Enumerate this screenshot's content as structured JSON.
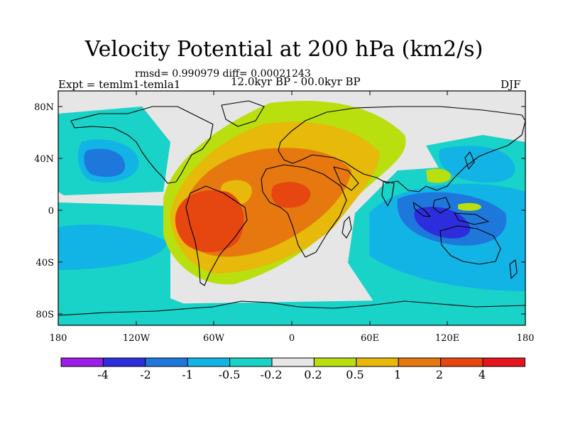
{
  "title": "Velocity Potential at 200 hPa (km2/s)",
  "stats": "rmsd= 0.990979 diff= 0.00021243",
  "experiment": "Expt = temlm1-temla1",
  "period": "12.0kyr BP - 00.0kyr BP",
  "season": "DJF",
  "lat_ticks": [
    "80N",
    "40N",
    "0",
    "40S",
    "80S"
  ],
  "lon_ticks": [
    "180",
    "120W",
    "60W",
    "0",
    "60E",
    "120E",
    "180"
  ],
  "colorbar": {
    "labels": [
      "-4",
      "-2",
      "-1",
      "-0.5",
      "-0.2",
      "0.2",
      "0.5",
      "1",
      "2",
      "4"
    ],
    "colors": [
      "#9b1ee6",
      "#2d2ddc",
      "#1e78dc",
      "#12b4e6",
      "#19d2c8",
      "#e6e6e6",
      "#b9df0f",
      "#e6b90a",
      "#e6780f",
      "#e6460f",
      "#e6141e"
    ]
  }
}
